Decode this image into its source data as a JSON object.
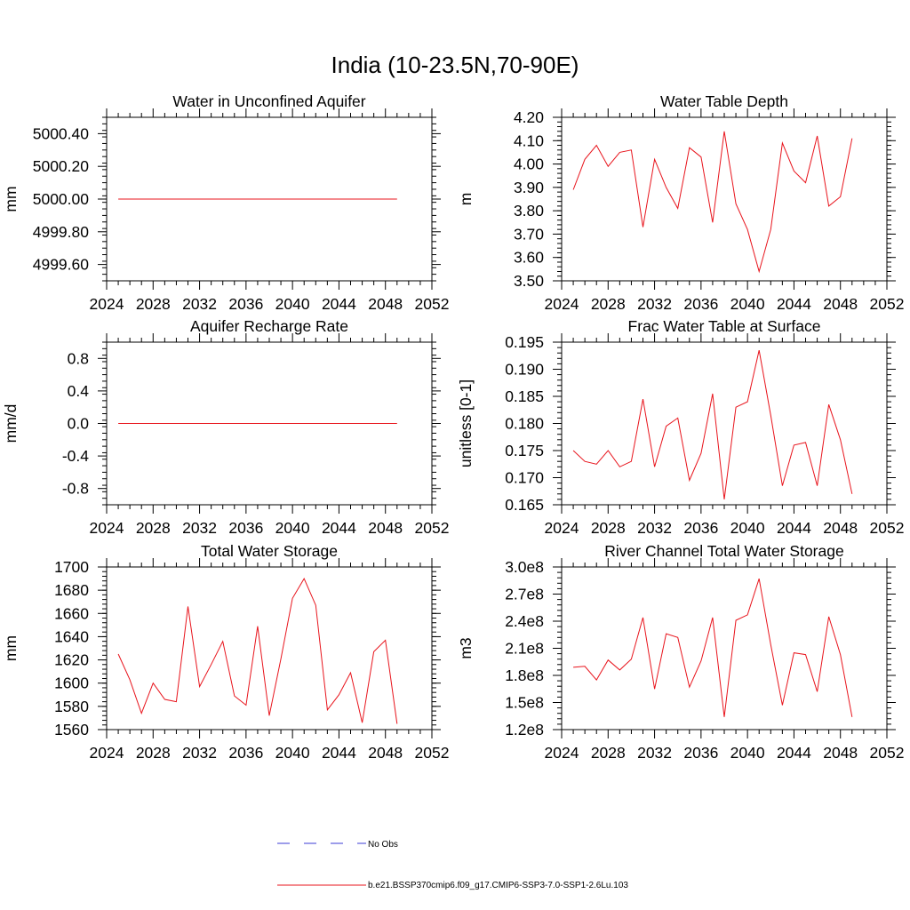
{
  "page": {
    "title": "India (10-23.5N,70-90E)"
  },
  "colors": {
    "model_line": "#e8141c",
    "obs_line": "#3b3bd6",
    "axis": "#000000"
  },
  "chart_data": [
    {
      "type": "line",
      "title": "Water in Unconfined Aquifer",
      "ylabel": "mm",
      "xlim": [
        2024,
        2052
      ],
      "ylim": [
        4999.5,
        5000.5
      ],
      "xticks": [
        2024,
        2028,
        2032,
        2036,
        2040,
        2044,
        2048,
        2052
      ],
      "yticks": [
        4999.6,
        4999.8,
        5000.0,
        5000.2,
        5000.4
      ],
      "ytick_labels": [
        "4999.60",
        "4999.80",
        "5000.00",
        "5000.20",
        "5000.40"
      ],
      "x": [
        2025,
        2026,
        2027,
        2028,
        2029,
        2030,
        2031,
        2032,
        2033,
        2034,
        2035,
        2036,
        2037,
        2038,
        2039,
        2040,
        2041,
        2042,
        2043,
        2044,
        2045,
        2046,
        2047,
        2048,
        2049
      ],
      "series": [
        {
          "values": [
            5000,
            5000,
            5000,
            5000,
            5000,
            5000,
            5000,
            5000,
            5000,
            5000,
            5000,
            5000,
            5000,
            5000,
            5000,
            5000,
            5000,
            5000,
            5000,
            5000,
            5000,
            5000,
            5000,
            5000,
            5000
          ]
        }
      ]
    },
    {
      "type": "line",
      "title": "Water Table Depth",
      "ylabel": "m",
      "xlim": [
        2024,
        2052
      ],
      "ylim": [
        3.5,
        4.2
      ],
      "xticks": [
        2024,
        2028,
        2032,
        2036,
        2040,
        2044,
        2048,
        2052
      ],
      "yticks": [
        3.5,
        3.6,
        3.7,
        3.8,
        3.9,
        4.0,
        4.1,
        4.2
      ],
      "ytick_labels": [
        "3.50",
        "3.60",
        "3.70",
        "3.80",
        "3.90",
        "4.00",
        "4.10",
        "4.20"
      ],
      "x": [
        2025,
        2026,
        2027,
        2028,
        2029,
        2030,
        2031,
        2032,
        2033,
        2034,
        2035,
        2036,
        2037,
        2038,
        2039,
        2040,
        2041,
        2042,
        2043,
        2044,
        2045,
        2046,
        2047,
        2048,
        2049
      ],
      "series": [
        {
          "values": [
            3.89,
            4.02,
            4.08,
            3.99,
            4.05,
            4.06,
            3.73,
            4.02,
            3.9,
            3.81,
            4.07,
            4.03,
            3.75,
            4.14,
            3.83,
            3.72,
            3.54,
            3.72,
            4.09,
            3.97,
            3.92,
            4.12,
            3.82,
            3.86,
            4.11
          ]
        }
      ]
    },
    {
      "type": "line",
      "title": "Aquifer Recharge Rate",
      "ylabel": "mm/d",
      "xlim": [
        2024,
        2052
      ],
      "ylim": [
        -1.0,
        1.0
      ],
      "xticks": [
        2024,
        2028,
        2032,
        2036,
        2040,
        2044,
        2048,
        2052
      ],
      "yticks": [
        -0.8,
        -0.4,
        0.0,
        0.4,
        0.8
      ],
      "ytick_labels": [
        "-0.8",
        "-0.4",
        "0.0",
        "0.4",
        "0.8"
      ],
      "x": [
        2025,
        2026,
        2027,
        2028,
        2029,
        2030,
        2031,
        2032,
        2033,
        2034,
        2035,
        2036,
        2037,
        2038,
        2039,
        2040,
        2041,
        2042,
        2043,
        2044,
        2045,
        2046,
        2047,
        2048,
        2049
      ],
      "series": [
        {
          "values": [
            0,
            0,
            0,
            0,
            0,
            0,
            0,
            0,
            0,
            0,
            0,
            0,
            0,
            0,
            0,
            0,
            0,
            0,
            0,
            0,
            0,
            0,
            0,
            0,
            0
          ]
        }
      ]
    },
    {
      "type": "line",
      "title": "Frac Water Table at Surface",
      "ylabel": "unitless [0-1]",
      "xlim": [
        2024,
        2052
      ],
      "ylim": [
        0.165,
        0.195
      ],
      "xticks": [
        2024,
        2028,
        2032,
        2036,
        2040,
        2044,
        2048,
        2052
      ],
      "yticks": [
        0.165,
        0.17,
        0.175,
        0.18,
        0.185,
        0.19,
        0.195
      ],
      "ytick_labels": [
        "0.165",
        "0.170",
        "0.175",
        "0.180",
        "0.185",
        "0.190",
        "0.195"
      ],
      "x": [
        2025,
        2026,
        2027,
        2028,
        2029,
        2030,
        2031,
        2032,
        2033,
        2034,
        2035,
        2036,
        2037,
        2038,
        2039,
        2040,
        2041,
        2042,
        2043,
        2044,
        2045,
        2046,
        2047,
        2048,
        2049
      ],
      "series": [
        {
          "values": [
            0.175,
            0.173,
            0.1725,
            0.175,
            0.172,
            0.173,
            0.1845,
            0.172,
            0.1795,
            0.181,
            0.1695,
            0.1745,
            0.1855,
            0.166,
            0.183,
            0.184,
            0.1935,
            0.1815,
            0.1685,
            0.176,
            0.1765,
            0.1685,
            0.1835,
            0.177,
            0.167
          ]
        }
      ]
    },
    {
      "type": "line",
      "title": "Total Water Storage",
      "ylabel": "mm",
      "xlim": [
        2024,
        2052
      ],
      "ylim": [
        1560,
        1700
      ],
      "xticks": [
        2024,
        2028,
        2032,
        2036,
        2040,
        2044,
        2048,
        2052
      ],
      "yticks": [
        1560,
        1580,
        1600,
        1620,
        1640,
        1660,
        1680,
        1700
      ],
      "ytick_labels": [
        "1560",
        "1580",
        "1600",
        "1620",
        "1640",
        "1660",
        "1680",
        "1700"
      ],
      "x": [
        2025,
        2026,
        2027,
        2028,
        2029,
        2030,
        2031,
        2032,
        2033,
        2034,
        2035,
        2036,
        2037,
        2038,
        2039,
        2040,
        2041,
        2042,
        2043,
        2044,
        2045,
        2046,
        2047,
        2048,
        2049
      ],
      "series": [
        {
          "values": [
            1625,
            1603,
            1574,
            1600,
            1586,
            1584,
            1666,
            1597,
            1616,
            1636,
            1589,
            1581,
            1649,
            1572,
            1621,
            1673,
            1690,
            1667,
            1577,
            1590,
            1609,
            1566,
            1627,
            1637,
            1565
          ]
        }
      ]
    },
    {
      "type": "line",
      "title": "River Channel Total Water Storage",
      "ylabel": "m3",
      "xlim": [
        2024,
        2052
      ],
      "ylim": [
        120000000,
        300000000
      ],
      "xticks": [
        2024,
        2028,
        2032,
        2036,
        2040,
        2044,
        2048,
        2052
      ],
      "yticks": [
        120000000,
        150000000,
        180000000,
        210000000,
        240000000,
        270000000,
        300000000
      ],
      "ytick_labels": [
        "1.2e8",
        "1.5e8",
        "1.8e8",
        "2.1e8",
        "2.4e8",
        "2.7e8",
        "3.0e8"
      ],
      "x": [
        2025,
        2026,
        2027,
        2028,
        2029,
        2030,
        2031,
        2032,
        2033,
        2034,
        2035,
        2036,
        2037,
        2038,
        2039,
        2040,
        2041,
        2042,
        2043,
        2044,
        2045,
        2046,
        2047,
        2048,
        2049
      ],
      "series": [
        {
          "values": [
            189000000,
            190000000,
            175000000,
            197000000,
            186000000,
            198000000,
            244000000,
            165000000,
            226000000,
            222000000,
            167000000,
            196000000,
            244000000,
            134000000,
            241000000,
            247000000,
            287000000,
            214000000,
            147000000,
            205000000,
            203000000,
            162000000,
            245000000,
            203000000,
            134000000
          ]
        }
      ]
    }
  ],
  "legend": {
    "placement": "bottom-center",
    "items": [
      {
        "label": "No Obs",
        "style": "dashed"
      },
      {
        "label": "b.e21.BSSP370cmip6.f09_g17.CMIP6-SSP3-7.0-SSP1-2.6Lu.103",
        "style": "solid"
      }
    ]
  }
}
